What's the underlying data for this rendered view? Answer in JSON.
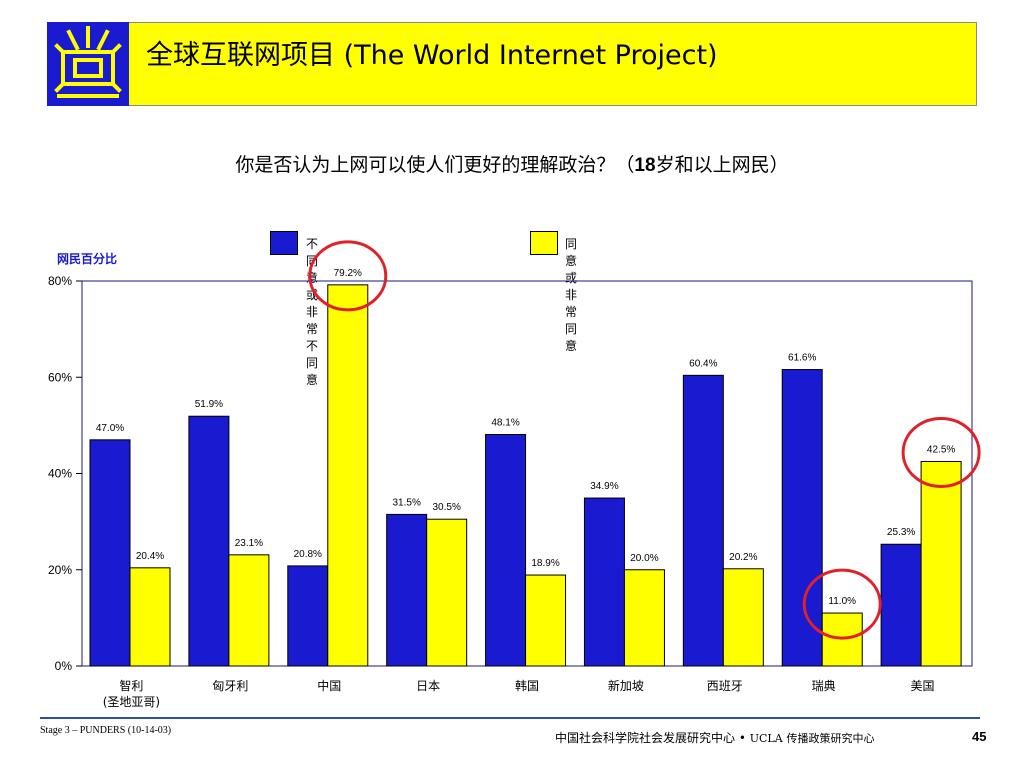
{
  "header": {
    "title": "全球互联网项目 (The World Internet Project)"
  },
  "question": {
    "prefix": "你是否认为上网可以使人们更好的理解政治？（",
    "bold": "18",
    "suffix": "岁和以上网民）"
  },
  "colors": {
    "banner": "#ffff00",
    "disagree": "#1a1ad0",
    "agree": "#ffff00",
    "highlight_circle": "#e0202a",
    "footer_line": "#2c4ea8"
  },
  "chart_data": {
    "type": "bar",
    "ylabel": "网民百分比",
    "ylim": [
      0,
      80
    ],
    "yticks": [
      "0%",
      "20%",
      "40%",
      "60%",
      "80%"
    ],
    "legend_position": "top",
    "categories": [
      "智利\n(圣地亚哥)",
      "匈牙利",
      "中国",
      "日本",
      "韩国",
      "新加坡",
      "西班牙",
      "瑞典",
      "美国"
    ],
    "series": [
      {
        "name": "不同意或非常不同意",
        "color": "#1a1ad0",
        "values": [
          47.0,
          51.9,
          20.8,
          31.5,
          48.1,
          34.9,
          60.4,
          61.6,
          25.3
        ],
        "labels": [
          "47.0%",
          "51.9%",
          "20.8%",
          "31.5%",
          "48.1%",
          "34.9%",
          "60.4%",
          "61.6%",
          "25.3%"
        ]
      },
      {
        "name": "同意或非常同意",
        "color": "#ffff00",
        "values": [
          20.4,
          23.1,
          79.2,
          30.5,
          18.9,
          20.0,
          20.2,
          11.0,
          42.5
        ],
        "labels": [
          "20.4%",
          "23.1%",
          "79.2%",
          "30.5%",
          "18.9%",
          "20.0%",
          "20.2%",
          "11.0%",
          "42.5%"
        ]
      }
    ],
    "highlighted": [
      {
        "category": "中国",
        "series": 1
      },
      {
        "category": "瑞典",
        "series": 1
      },
      {
        "category": "美国",
        "series": 1
      }
    ]
  },
  "footer": {
    "left": "Stage 3 – PUNDERS (10-14-03)",
    "right_main": "中国社会科学院社会发展研究中心 •",
    "right_ucla": "UCLA",
    "right_small": "传播政策研究中心",
    "page": "45"
  }
}
